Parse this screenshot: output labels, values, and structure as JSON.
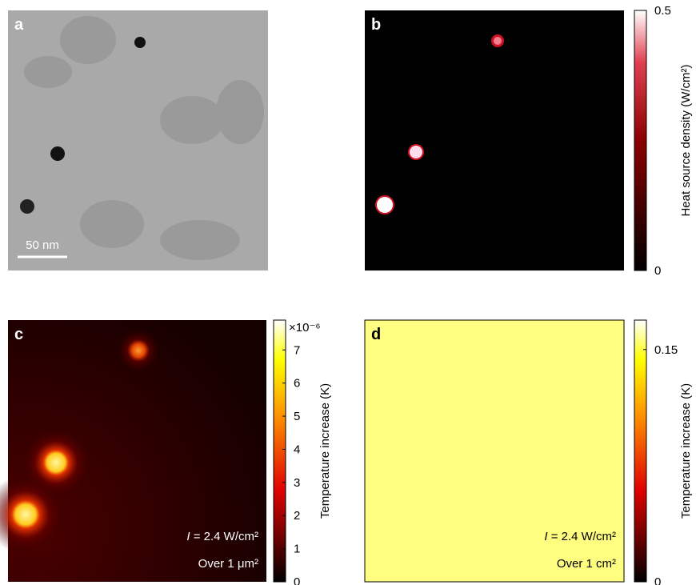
{
  "panels": [
    {
      "label": "a",
      "scale_bar": "50 nm"
    },
    {
      "label": "b",
      "colorbar": {
        "label": "Heat source density (W/cm²)",
        "lim": [
          0,
          0.5
        ],
        "ticks": [
          0,
          0.5
        ]
      }
    },
    {
      "label": "c",
      "colorbar": {
        "label": "Temperature increase (K)",
        "multiplier": "×10⁻⁶",
        "lim": [
          0,
          7.9
        ],
        "ticks": [
          0,
          1,
          2,
          3,
          4,
          5,
          6,
          7
        ]
      },
      "annotations": [
        {
          "var": "I",
          "text": " = 2.4 W/cm²"
        },
        {
          "text": "Over 1 μm²"
        }
      ]
    },
    {
      "label": "d",
      "colorbar": {
        "label": "Temperature increase (K)",
        "lim": [
          0,
          0.169
        ],
        "ticks": [
          0,
          0.15
        ]
      },
      "annotations": [
        {
          "var": "I",
          "text": " = 2.4 W/cm²"
        },
        {
          "text": "Over 1 cm²"
        }
      ]
    }
  ]
}
